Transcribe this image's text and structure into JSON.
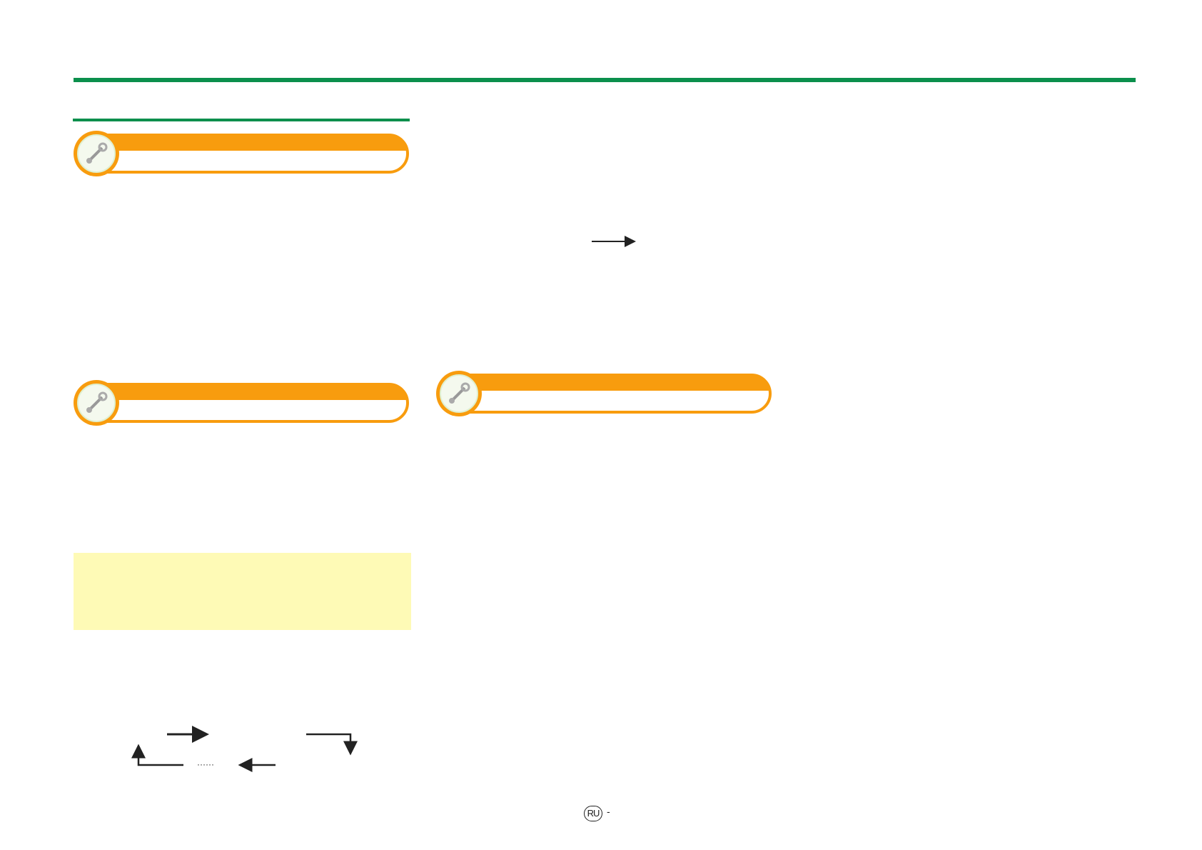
{
  "colors": {
    "accent_green": "#0b8f4c",
    "header_orange": "#f89c0e",
    "note_yellow": "#fefab6"
  },
  "section_headers": [
    {
      "icon": "wrench-icon"
    },
    {
      "icon": "wrench-icon"
    },
    {
      "icon": "wrench-icon"
    }
  ],
  "diagram": {
    "ellipsis": "······"
  },
  "footer": {
    "language_badge": "RU",
    "page_suffix": "-"
  }
}
